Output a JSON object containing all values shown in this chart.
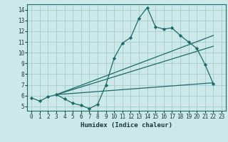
{
  "xlabel": "Humidex (Indice chaleur)",
  "bg_color": "#cce8e8",
  "grid_color": "#aacece",
  "line_color": "#1a6b6b",
  "xlim": [
    -0.5,
    23.5
  ],
  "ylim": [
    4.6,
    14.5
  ],
  "xticks": [
    0,
    1,
    2,
    3,
    4,
    5,
    6,
    7,
    8,
    9,
    10,
    11,
    12,
    13,
    14,
    15,
    16,
    17,
    18,
    19,
    20,
    21,
    22,
    23
  ],
  "yticks": [
    5,
    6,
    7,
    8,
    9,
    10,
    11,
    12,
    13,
    14
  ],
  "line1_x": [
    0,
    1,
    2,
    3,
    4,
    5,
    6,
    7,
    8,
    9,
    10,
    11,
    12,
    13,
    14,
    15,
    16,
    17,
    18,
    19,
    20,
    21,
    22
  ],
  "line1_y": [
    5.8,
    5.5,
    5.9,
    6.1,
    5.7,
    5.3,
    5.1,
    4.8,
    5.2,
    7.0,
    9.5,
    10.9,
    11.4,
    13.2,
    14.2,
    12.4,
    12.2,
    12.3,
    11.6,
    11.0,
    10.4,
    8.9,
    7.1
  ],
  "line2_x": [
    3,
    22
  ],
  "line2_y": [
    6.1,
    11.6
  ],
  "line3_x": [
    3,
    22
  ],
  "line3_y": [
    6.1,
    10.6
  ],
  "line4_x": [
    3,
    22
  ],
  "line4_y": [
    6.1,
    7.2
  ]
}
